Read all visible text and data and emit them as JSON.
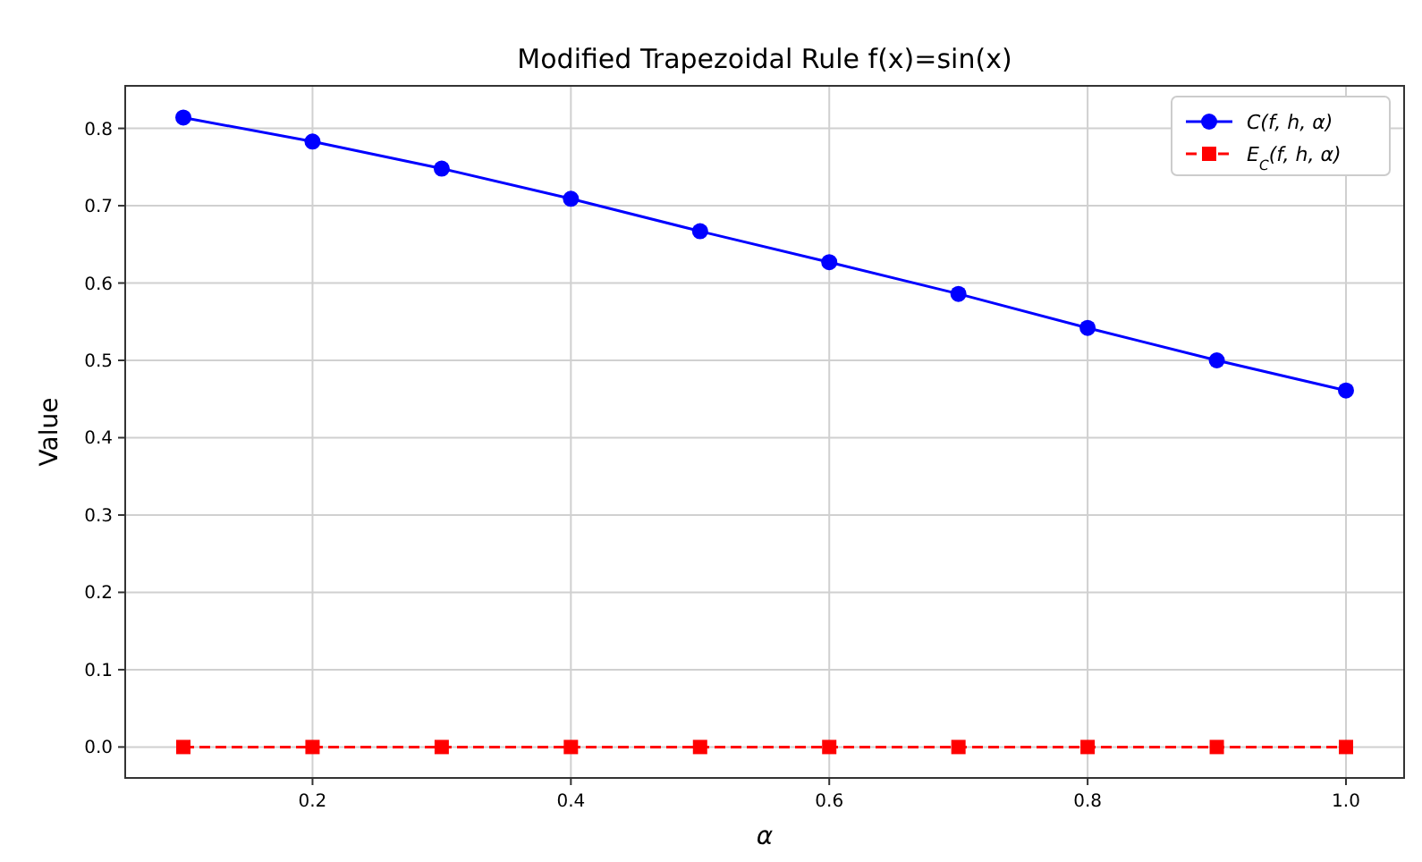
{
  "chart_data": {
    "type": "line",
    "title": "Modified Trapezoidal Rule f(x)=sin(x)",
    "xlabel": "α",
    "ylabel": "Value",
    "x": [
      0.1,
      0.2,
      0.3,
      0.4,
      0.5,
      0.6,
      0.7,
      0.8,
      0.9,
      1.0
    ],
    "series": [
      {
        "name": "C(f, h, α)",
        "color": "#0000ff",
        "marker": "circle",
        "line_style": "solid",
        "values": [
          0.814,
          0.783,
          0.748,
          0.709,
          0.667,
          0.627,
          0.586,
          0.542,
          0.5,
          0.461
        ]
      },
      {
        "name": "E$_{C}$(f, h, α)",
        "color": "#ff0000",
        "marker": "square",
        "line_style": "dashed",
        "values": [
          0,
          0,
          0,
          0,
          0,
          0,
          0,
          0,
          0,
          0
        ]
      }
    ],
    "xlim": [
      0.055,
      1.045
    ],
    "ylim": [
      -0.04,
      0.855
    ],
    "xticks": [
      0.2,
      0.4,
      0.6,
      0.8,
      {
        "value": 1.0,
        "label": "1.0"
      }
    ],
    "yticks": [
      {
        "value": 0,
        "label": "0.0"
      },
      0.1,
      0.2,
      0.3,
      0.4,
      0.5,
      0.6,
      0.7,
      0.8
    ],
    "grid": true,
    "legend": "top right"
  }
}
